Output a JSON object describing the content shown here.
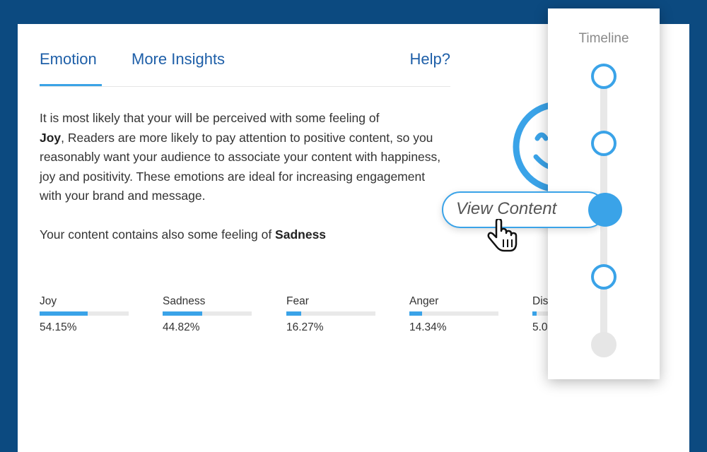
{
  "tabs": {
    "emotion": "Emotion",
    "insights": "More Insights",
    "help": "Help?"
  },
  "description": {
    "line1": "It is most likely that your will be perceived with some feeling of",
    "bold_word": "Joy",
    "rest": ", Readers are more likely to pay attention to positive content, so you reasonably want your audience to associate your content with happiness, joy and positivity. These emotions are ideal for increasing engagement with your brand and message."
  },
  "also": {
    "prefix": "Your content contains also some feeling of ",
    "emotion": "Sadness"
  },
  "metrics": [
    {
      "label": "Joy",
      "value": "54.15%",
      "fraction": 0.5415
    },
    {
      "label": "Sadness",
      "value": "44.82%",
      "fraction": 0.4482
    },
    {
      "label": "Fear",
      "value": "16.27%",
      "fraction": 0.1627
    },
    {
      "label": "Anger",
      "value": "14.34%",
      "fraction": 0.1434
    },
    {
      "label": "Dis",
      "value": "5.0",
      "fraction": 0.05
    }
  ],
  "timeline": {
    "title": "Timeline",
    "view_content": "View Content"
  },
  "colors": {
    "accent": "#3aa3e8",
    "link": "#1e5fa8",
    "background": "#0c4a80"
  }
}
